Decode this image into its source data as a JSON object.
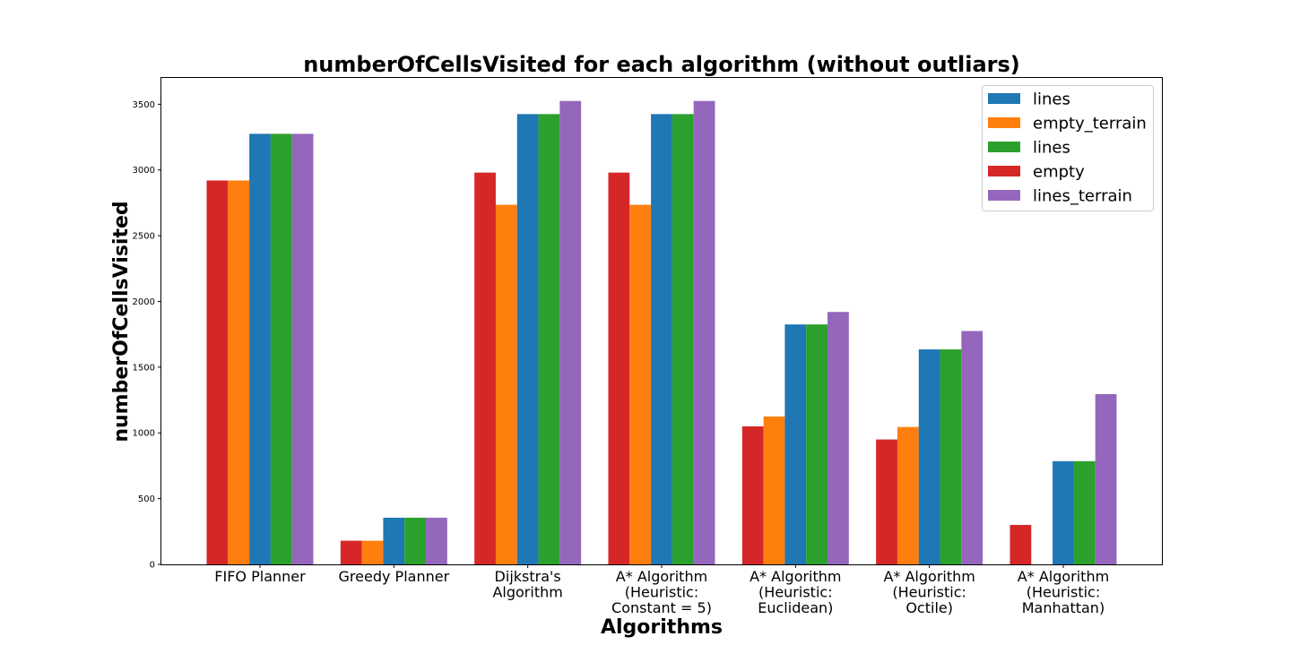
{
  "chart_data": {
    "type": "bar",
    "title": "numberOfCellsVisited for each algorithm (without outliars)",
    "xlabel": "Algorithms",
    "ylabel": "numberOfCellsVisited",
    "ylim": [
      0,
      3700
    ],
    "yticks": [
      0,
      500,
      1000,
      1500,
      2000,
      2500,
      3000,
      3500
    ],
    "grid": false,
    "legend_position": "top-right",
    "categories": [
      [
        "FIFO Planner"
      ],
      [
        "Greedy Planner"
      ],
      [
        "Dijkstra's",
        "Algorithm"
      ],
      [
        "A* Algorithm",
        "(Heuristic:",
        "Constant = 5)"
      ],
      [
        "A* Algorithm",
        "(Heuristic:",
        "Euclidean)"
      ],
      [
        "A* Algorithm",
        "(Heuristic:",
        "Octile)"
      ],
      [
        "A* Algorithm",
        "(Heuristic:",
        "Manhattan)"
      ]
    ],
    "series": [
      {
        "name": "empty",
        "color": "#d62728",
        "values": [
          2920,
          180,
          2980,
          2980,
          1050,
          950,
          300
        ]
      },
      {
        "name": "empty_terrain",
        "color": "#ff7f0e",
        "values": [
          2920,
          180,
          2735,
          2735,
          1125,
          1045,
          0
        ]
      },
      {
        "name": "lines",
        "color": "#1f77b4",
        "values": [
          3275,
          355,
          3425,
          3425,
          1825,
          1635,
          785
        ]
      },
      {
        "name": "lines",
        "color": "#2ca02c",
        "values": [
          3275,
          355,
          3425,
          3425,
          1825,
          1635,
          785
        ]
      },
      {
        "name": "lines_terrain",
        "color": "#9467bd",
        "values": [
          3275,
          355,
          3525,
          3525,
          1920,
          1775,
          1295
        ]
      }
    ],
    "legend_order": [
      2,
      1,
      3,
      0,
      4
    ]
  }
}
